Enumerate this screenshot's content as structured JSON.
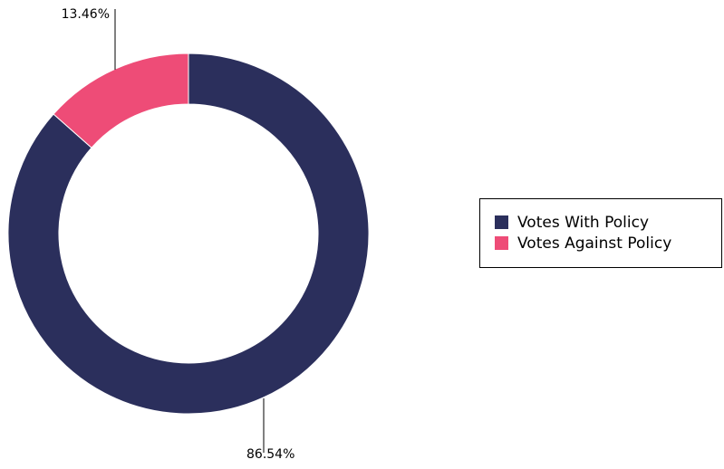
{
  "chart_data": {
    "type": "pie",
    "donut": true,
    "series": [
      {
        "name": "Votes With Policy",
        "value": 86.54,
        "label": "86.54%",
        "color": "#2b2f5c"
      },
      {
        "name": "Votes Against Policy",
        "value": 13.46,
        "label": "13.46%",
        "color": "#ee4c77"
      }
    ],
    "legend_position": "right"
  }
}
